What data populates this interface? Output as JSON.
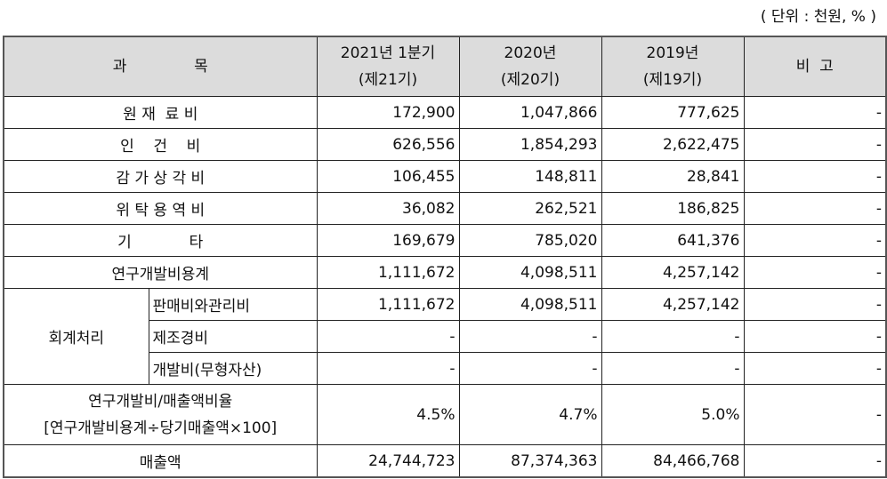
{
  "unit_note": "( 단위 : 천원, % )",
  "header": {
    "item": "과              목",
    "col1_line1": "2021년 1분기",
    "col1_line2": "(제21기)",
    "col2_line1": "2020년",
    "col2_line2": "(제20기)",
    "col3_line1": "2019년",
    "col3_line2": "(제19기)",
    "note": "비  고"
  },
  "rows": [
    {
      "label": "원 재  료 비",
      "v": [
        "172,900",
        "1,047,866",
        "777,625"
      ],
      "note": "-"
    },
    {
      "label": "인    건    비",
      "v": [
        "626,556",
        "1,854,293",
        "2,622,475"
      ],
      "note": "-"
    },
    {
      "label": "감 가 상 각 비",
      "v": [
        "106,455",
        "148,811",
        "28,841"
      ],
      "note": "-"
    },
    {
      "label": "위 탁 용 역 비",
      "v": [
        "36,082",
        "262,521",
        "186,825"
      ],
      "note": "-"
    },
    {
      "label": "기            타",
      "v": [
        "169,679",
        "785,020",
        "641,376"
      ],
      "note": "-"
    },
    {
      "label": "연구개발비용계",
      "v": [
        "1,111,672",
        "4,098,511",
        "4,257,142"
      ],
      "note": "-"
    }
  ],
  "accounting": {
    "label": "회계처리",
    "rows": [
      {
        "label": "판매비와관리비",
        "v": [
          "1,111,672",
          "4,098,511",
          "4,257,142"
        ],
        "note": "-"
      },
      {
        "label": "제조경비",
        "v": [
          "-",
          "-",
          "-"
        ],
        "note": "-"
      },
      {
        "label": "개발비(무형자산)",
        "v": [
          "-",
          "-",
          "-"
        ],
        "note": "-"
      }
    ]
  },
  "ratio": {
    "label_line1": "연구개발비/매출액비율",
    "label_line2": "[연구개발비용계÷당기매출액×100]",
    "v": [
      "4.5%",
      "4.7%",
      "5.0%"
    ],
    "note": "-"
  },
  "sales": {
    "label": "매출액",
    "v": [
      "24,744,723",
      "87,374,363",
      "84,466,768"
    ],
    "note": "-"
  }
}
